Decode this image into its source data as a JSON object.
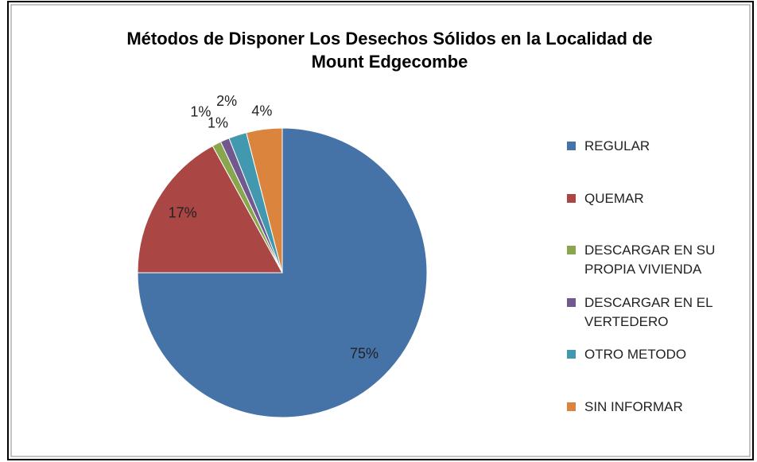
{
  "chart_data": {
    "type": "pie",
    "title": "Métodos de Disponer Los Desechos Sólidos en la Localidad de Mount Edgecombe",
    "categories": [
      "REGULAR",
      "QUEMAR",
      "DESCARGAR EN SU PROPIA VIVIENDA",
      "DESCARGAR EN EL VERTEDERO",
      "OTRO METODO",
      "SIN INFORMAR"
    ],
    "values": [
      75,
      17,
      1,
      1,
      2,
      4
    ],
    "value_labels": [
      "75%",
      "17%",
      "1%",
      "1%",
      "2%",
      "4%"
    ],
    "colors": [
      "#4572a7",
      "#aa4643",
      "#89a54e",
      "#71588f",
      "#4198af",
      "#db843d"
    ],
    "legend": "right"
  }
}
